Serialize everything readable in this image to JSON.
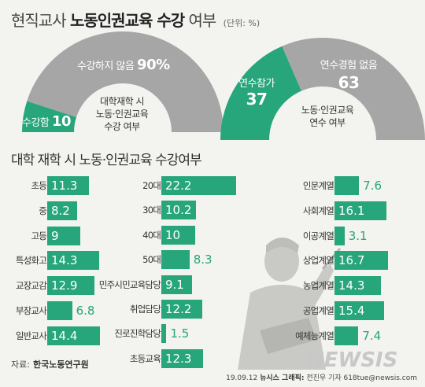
{
  "header": {
    "title_prefix": "현직교사",
    "title_bold": "노동인권교육 수강",
    "title_suffix": "여부",
    "unit": "(단위: %)"
  },
  "colors": {
    "accent": "#27a57b",
    "gray": "#a6a6a6"
  },
  "chart_data": [
    {
      "type": "pie",
      "center_label": [
        "대학재학 시",
        "노동·인권교육",
        "수강 여부"
      ],
      "slices": [
        {
          "label": "수강함",
          "value": 10
        },
        {
          "label": "수강하지 않음",
          "value": 90
        }
      ]
    },
    {
      "type": "pie",
      "center_label": [
        "노동·인권교육",
        "연수 여부"
      ],
      "slices": [
        {
          "label": "연수참가",
          "value": 37
        },
        {
          "label": "연수경험 없음",
          "value": 63
        }
      ]
    },
    {
      "type": "bar",
      "title": "대학 재학 시 노동·인권교육 수강여부",
      "categories": [
        "초등",
        "중",
        "고등",
        "특성화고",
        "교장교감",
        "부장교사",
        "일반교사"
      ],
      "values": [
        11.3,
        8.2,
        9,
        14.3,
        12.9,
        6.8,
        14.4
      ],
      "value_labels": [
        "11.3",
        "8.2",
        "9",
        "14.3",
        "12.9",
        "6.8",
        "14.4"
      ]
    },
    {
      "type": "bar",
      "categories": [
        "20대",
        "30대",
        "40대",
        "50대",
        "민주시민교육담당",
        "취업담당",
        "진로진학담당",
        "초등교육"
      ],
      "values": [
        22.2,
        10.2,
        10,
        8.3,
        9.1,
        12.2,
        1.5,
        12.3
      ],
      "value_labels": [
        "22.2",
        "10.2",
        "10",
        "8.3",
        "9.1",
        "12.2",
        "1.5",
        "12.3"
      ]
    },
    {
      "type": "bar",
      "categories": [
        "인문계열",
        "사회계열",
        "이공계열",
        "상업계열",
        "농업계열",
        "공업계열",
        "예체능계열"
      ],
      "values": [
        7.6,
        16.1,
        3.1,
        16.7,
        14.3,
        15.4,
        7.4
      ],
      "value_labels": [
        "7.6",
        "16.1",
        "3.1",
        "16.7",
        "14.3",
        "15.4",
        "7.4"
      ]
    }
  ],
  "footer": {
    "source_label": "자료:",
    "source_org": "한국노동연구원",
    "credit_date": "19.09.12",
    "credit_org": "뉴시스 그래픽:",
    "credit_author": "전진우 기자 618tue@newsis.com",
    "logo_text": "NEWSIS"
  }
}
